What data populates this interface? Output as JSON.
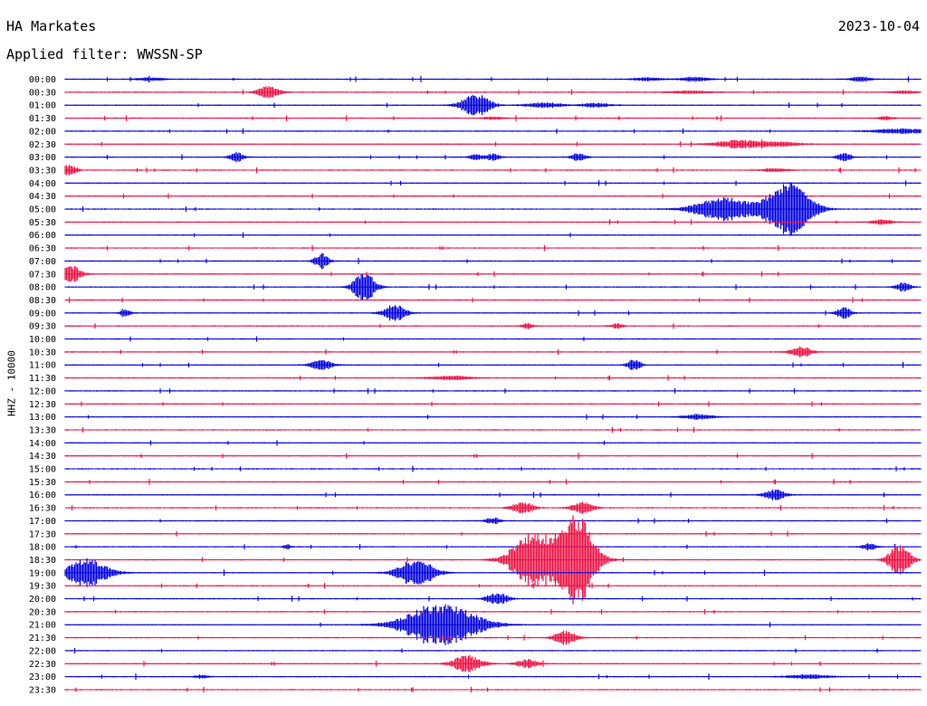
{
  "header": {
    "station": "HA Markates",
    "date": "2023-10-04",
    "filter_label": "Applied filter: WWSSN-SP"
  },
  "colors": {
    "even_row": "#0000dd",
    "odd_row": "#ee1144"
  },
  "chart_data": {
    "type": "line",
    "title": "HA Markates",
    "subtitle": "Applied filter: WWSSN-SP",
    "ylabel": "HHZ - 10000",
    "xlabel": "",
    "rows": [
      "00:00",
      "00:30",
      "01:00",
      "01:30",
      "02:00",
      "02:30",
      "03:00",
      "03:30",
      "04:00",
      "04:30",
      "05:00",
      "05:30",
      "06:00",
      "06:30",
      "07:00",
      "07:30",
      "08:00",
      "08:30",
      "09:00",
      "09:30",
      "10:00",
      "10:30",
      "11:00",
      "11:30",
      "12:00",
      "12:30",
      "13:00",
      "13:30",
      "14:00",
      "14:30",
      "15:00",
      "15:30",
      "16:00",
      "16:30",
      "17:00",
      "17:30",
      "18:00",
      "18:30",
      "19:00",
      "19:30",
      "20:00",
      "20:30",
      "21:00",
      "21:30",
      "22:00",
      "22:30",
      "23:00",
      "23:30"
    ],
    "events": [
      {
        "row": 0,
        "x": 0.1,
        "amp": 0.25,
        "dur": 0.02
      },
      {
        "row": 0,
        "x": 0.68,
        "amp": 0.25,
        "dur": 0.02
      },
      {
        "row": 0,
        "x": 0.735,
        "amp": 0.35,
        "dur": 0.02
      },
      {
        "row": 0,
        "x": 0.93,
        "amp": 0.35,
        "dur": 0.015
      },
      {
        "row": 1,
        "x": 0.23,
        "amp": 0.3,
        "dur": 0.01
      },
      {
        "row": 1,
        "x": 0.24,
        "amp": 0.8,
        "dur": 0.015
      },
      {
        "row": 1,
        "x": 0.73,
        "amp": 0.2,
        "dur": 0.03
      },
      {
        "row": 1,
        "x": 0.98,
        "amp": 0.25,
        "dur": 0.015
      },
      {
        "row": 2,
        "x": 0.48,
        "amp": 1.8,
        "dur": 0.02
      },
      {
        "row": 2,
        "x": 0.56,
        "amp": 0.4,
        "dur": 0.025
      },
      {
        "row": 2,
        "x": 0.62,
        "amp": 0.3,
        "dur": 0.02
      },
      {
        "row": 3,
        "x": 0.5,
        "amp": 0.2,
        "dur": 0.015
      },
      {
        "row": 3,
        "x": 0.96,
        "amp": 0.25,
        "dur": 0.01
      },
      {
        "row": 4,
        "x": 0.98,
        "amp": 0.4,
        "dur": 0.04
      },
      {
        "row": 5,
        "x": 0.785,
        "amp": 0.6,
        "dur": 0.03
      },
      {
        "row": 5,
        "x": 0.83,
        "amp": 0.4,
        "dur": 0.03
      },
      {
        "row": 6,
        "x": 0.2,
        "amp": 0.8,
        "dur": 0.01
      },
      {
        "row": 6,
        "x": 0.48,
        "amp": 0.4,
        "dur": 0.01
      },
      {
        "row": 6,
        "x": 0.5,
        "amp": 0.5,
        "dur": 0.01
      },
      {
        "row": 6,
        "x": 0.6,
        "amp": 0.6,
        "dur": 0.01
      },
      {
        "row": 6,
        "x": 0.91,
        "amp": 0.7,
        "dur": 0.01
      },
      {
        "row": 7,
        "x": 0.005,
        "amp": 0.9,
        "dur": 0.01
      },
      {
        "row": 7,
        "x": 0.83,
        "amp": 0.25,
        "dur": 0.02
      },
      {
        "row": 10,
        "x": 0.77,
        "amp": 1.8,
        "dur": 0.04
      },
      {
        "row": 10,
        "x": 0.82,
        "amp": 0.8,
        "dur": 0.02
      },
      {
        "row": 10,
        "x": 0.84,
        "amp": 2.0,
        "dur": 0.025
      },
      {
        "row": 10,
        "x": 0.85,
        "amp": 1.5,
        "dur": 0.02
      },
      {
        "row": 10,
        "x": 0.86,
        "amp": 1.8,
        "dur": 0.025
      },
      {
        "row": 11,
        "x": 0.955,
        "amp": 0.35,
        "dur": 0.015
      },
      {
        "row": 14,
        "x": 0.3,
        "amp": 1.2,
        "dur": 0.01
      },
      {
        "row": 15,
        "x": 0.005,
        "amp": 1.5,
        "dur": 0.015
      },
      {
        "row": 16,
        "x": 0.35,
        "amp": 2.5,
        "dur": 0.015
      },
      {
        "row": 16,
        "x": 0.98,
        "amp": 0.7,
        "dur": 0.01
      },
      {
        "row": 18,
        "x": 0.07,
        "amp": 0.5,
        "dur": 0.008
      },
      {
        "row": 18,
        "x": 0.385,
        "amp": 1.4,
        "dur": 0.015
      },
      {
        "row": 18,
        "x": 0.91,
        "amp": 0.9,
        "dur": 0.01
      },
      {
        "row": 19,
        "x": 0.54,
        "amp": 0.4,
        "dur": 0.008
      },
      {
        "row": 19,
        "x": 0.645,
        "amp": 0.4,
        "dur": 0.008
      },
      {
        "row": 21,
        "x": 0.86,
        "amp": 0.8,
        "dur": 0.015
      },
      {
        "row": 22,
        "x": 0.3,
        "amp": 0.8,
        "dur": 0.015
      },
      {
        "row": 22,
        "x": 0.665,
        "amp": 0.8,
        "dur": 0.01
      },
      {
        "row": 23,
        "x": 0.45,
        "amp": 0.3,
        "dur": 0.03
      },
      {
        "row": 26,
        "x": 0.74,
        "amp": 0.4,
        "dur": 0.02
      },
      {
        "row": 32,
        "x": 0.83,
        "amp": 0.8,
        "dur": 0.015
      },
      {
        "row": 33,
        "x": 0.535,
        "amp": 0.9,
        "dur": 0.015
      },
      {
        "row": 33,
        "x": 0.605,
        "amp": 0.9,
        "dur": 0.015
      },
      {
        "row": 34,
        "x": 0.5,
        "amp": 0.5,
        "dur": 0.01
      },
      {
        "row": 36,
        "x": 0.26,
        "amp": 0.4,
        "dur": 0.005
      },
      {
        "row": 36,
        "x": 0.94,
        "amp": 0.5,
        "dur": 0.01
      },
      {
        "row": 37,
        "x": 0.545,
        "amp": 3.8,
        "dur": 0.03
      },
      {
        "row": 37,
        "x": 0.58,
        "amp": 2.0,
        "dur": 0.03
      },
      {
        "row": 37,
        "x": 0.6,
        "amp": 6.0,
        "dur": 0.025
      },
      {
        "row": 37,
        "x": 0.975,
        "amp": 2.5,
        "dur": 0.015
      },
      {
        "row": 38,
        "x": 0.025,
        "amp": 2.2,
        "dur": 0.03
      },
      {
        "row": 38,
        "x": 0.41,
        "amp": 2.2,
        "dur": 0.025
      },
      {
        "row": 40,
        "x": 0.505,
        "amp": 0.9,
        "dur": 0.015
      },
      {
        "row": 42,
        "x": 0.44,
        "amp": 3.5,
        "dur": 0.05
      },
      {
        "row": 43,
        "x": 0.585,
        "amp": 1.1,
        "dur": 0.015
      },
      {
        "row": 45,
        "x": 0.47,
        "amp": 1.3,
        "dur": 0.02
      },
      {
        "row": 45,
        "x": 0.54,
        "amp": 0.7,
        "dur": 0.015
      },
      {
        "row": 46,
        "x": 0.16,
        "amp": 0.25,
        "dur": 0.01
      },
      {
        "row": 46,
        "x": 0.87,
        "amp": 0.3,
        "dur": 0.03
      }
    ]
  }
}
